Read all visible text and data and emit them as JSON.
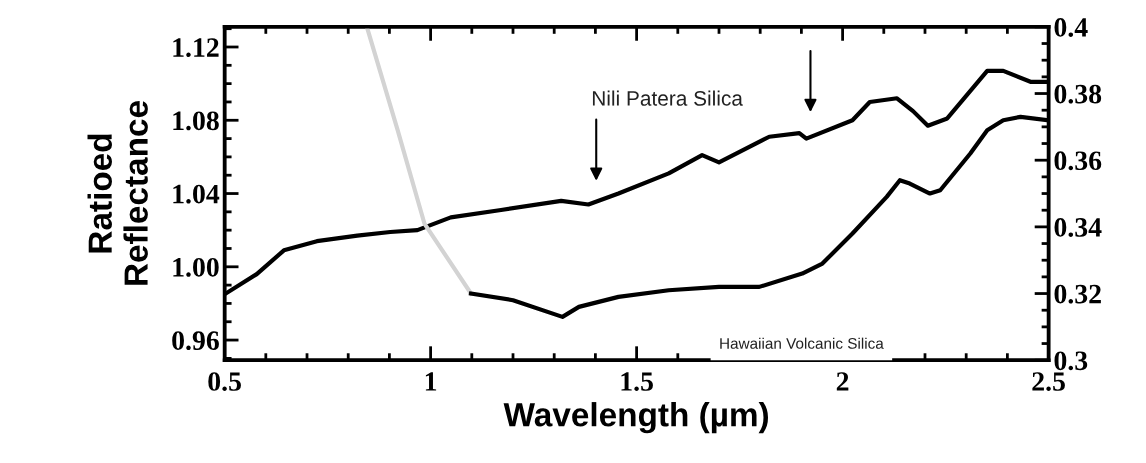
{
  "chart_data": {
    "type": "line",
    "xlabel": "Wavelength (µm)",
    "ylabel": "Ratioed\nReflectance",
    "xlim": [
      0.5,
      2.5
    ],
    "xticks": [
      0.5,
      1,
      1.5,
      2,
      2.5
    ],
    "ylim": [
      0.949,
      1.131
    ],
    "yticks": [
      {
        "value": 0.96,
        "label": "0.96"
      },
      {
        "value": 1.0,
        "label": "1.00"
      },
      {
        "value": 1.04,
        "label": "1.04"
      },
      {
        "value": 1.08,
        "label": "1.08"
      },
      {
        "value": 1.12,
        "label": "1.12"
      }
    ],
    "y2lim": [
      0.3,
      0.4
    ],
    "y2ticks": [
      0.3,
      0.32,
      0.34,
      0.36,
      0.38,
      0.4
    ],
    "grid": false,
    "legend": false,
    "marker": "none",
    "line_style": "solid",
    "series": [
      {
        "color": "#000000",
        "x": [
          0.5,
          0.578,
          0.644,
          0.724,
          0.822,
          0.902,
          0.968,
          1.049,
          1.171,
          1.317,
          1.383,
          1.456,
          1.578,
          1.659,
          1.7,
          1.822,
          1.895,
          1.912,
          2.024,
          2.066,
          2.132,
          2.171,
          2.207,
          2.254,
          2.351,
          2.39,
          2.456,
          2.498
        ],
        "values": [
          0.985,
          0.996,
          1.009,
          1.014,
          1.017,
          1.019,
          1.02,
          1.027,
          1.031,
          1.036,
          1.034,
          1.04,
          1.051,
          1.061,
          1.057,
          1.071,
          1.073,
          1.07,
          1.08,
          1.09,
          1.092,
          1.085,
          1.077,
          1.081,
          1.107,
          1.107,
          1.101,
          1.101
        ]
      },
      {
        "color": "#d3d3d3",
        "axis": "y2",
        "x": [
          0.846,
          0.92,
          0.985,
          1.098
        ],
        "values": [
          0.3997,
          0.369,
          0.341,
          0.32
        ]
      },
      {
        "color": "#000000",
        "axis": "y2",
        "x": [
          1.098,
          1.2,
          1.32,
          1.36,
          1.456,
          1.578,
          1.7,
          1.798,
          1.902,
          1.951,
          2.024,
          2.107,
          2.139,
          2.163,
          2.212,
          2.237,
          2.31,
          2.351,
          2.39,
          2.432,
          2.498
        ],
        "values": [
          0.32,
          0.318,
          0.313,
          0.316,
          0.319,
          0.321,
          0.322,
          0.322,
          0.326,
          0.329,
          0.338,
          0.349,
          0.354,
          0.353,
          0.35,
          0.351,
          0.362,
          0.369,
          0.372,
          0.373,
          0.372
        ]
      }
    ],
    "annotations": [
      "Nili Patera Silica",
      "Hawaiian Volcanic Silica"
    ]
  }
}
